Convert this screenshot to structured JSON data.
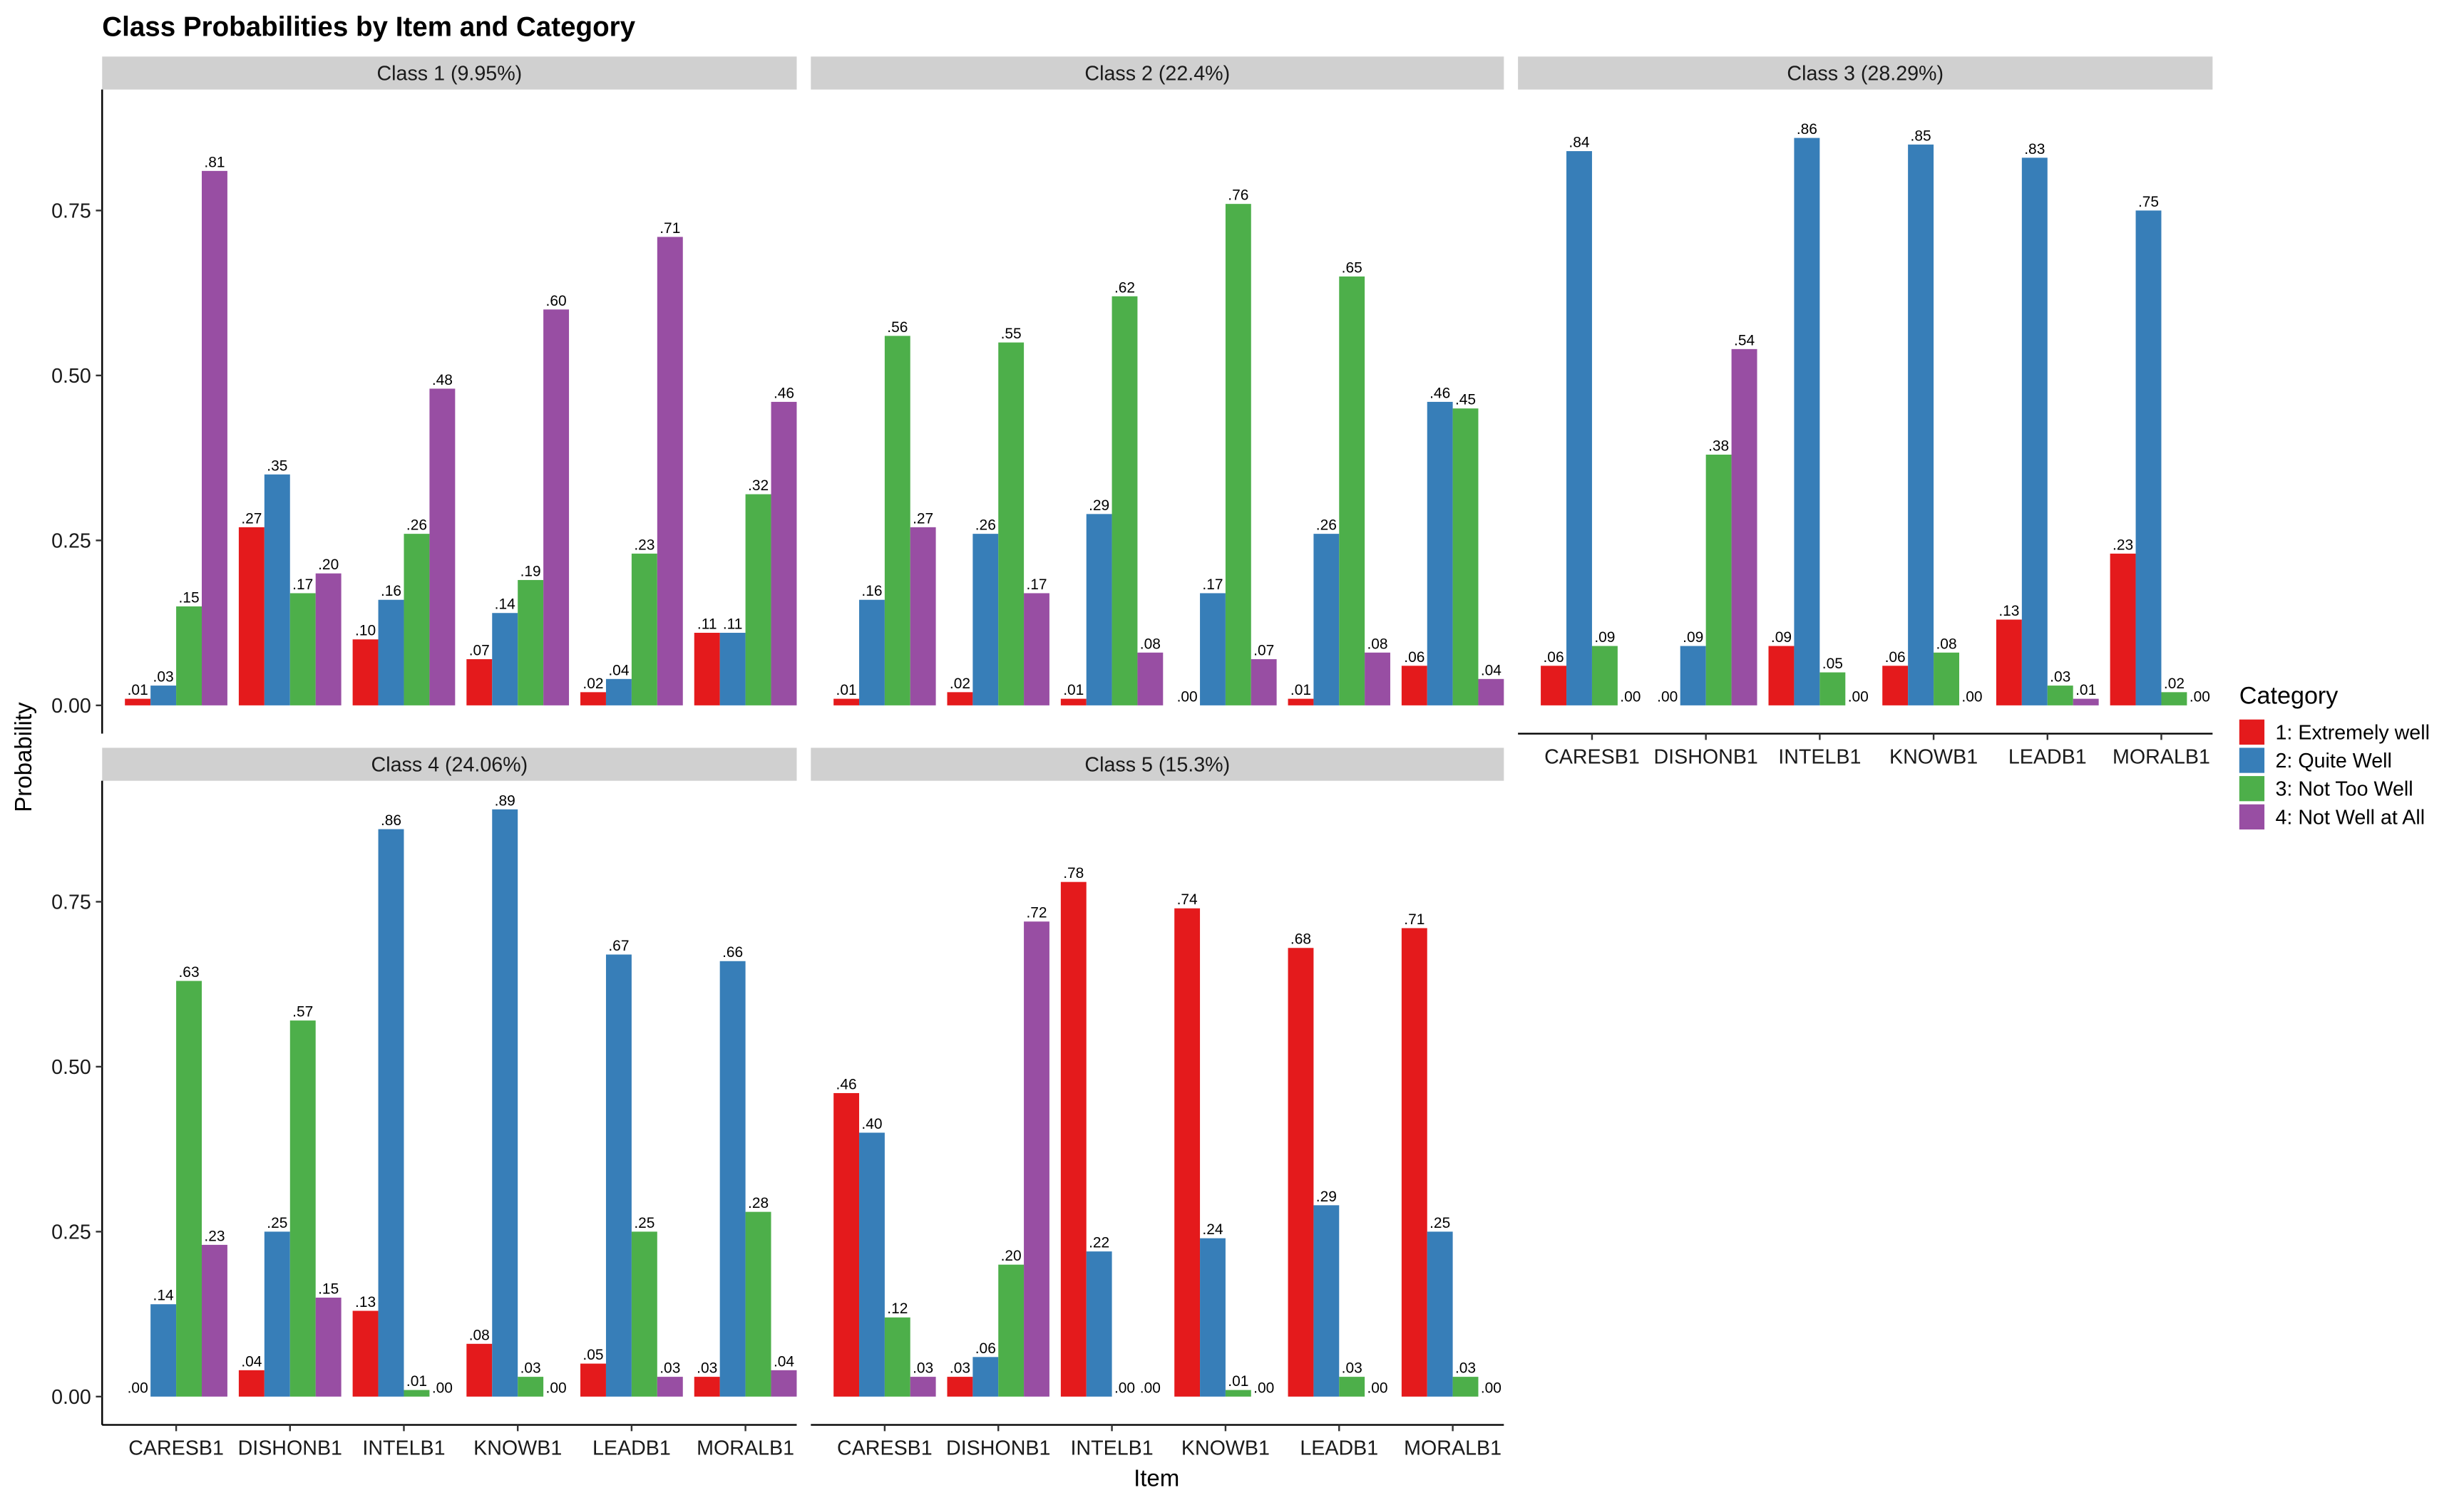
{
  "chart_data": {
    "type": "bar",
    "subtype": "grouped-faceted",
    "title": "Class Probabilities by Item and Category",
    "xlabel": "Item",
    "ylabel": "Probability",
    "ylim": [
      0,
      0.93
    ],
    "yticks": [
      0,
      0.25,
      0.5,
      0.75
    ],
    "ytick_labels": [
      "0.00",
      "0.25",
      "0.50",
      "0.75"
    ],
    "grid": false,
    "categories": [
      "CARESB1",
      "DISHONB1",
      "INTELB1",
      "KNOWB1",
      "LEADB1",
      "MORALB1"
    ],
    "legend": {
      "title": "Category",
      "position": "right",
      "entries": [
        {
          "name": "1: Extremely well",
          "color": "#E41A1C"
        },
        {
          "name": "2: Quite Well",
          "color": "#377EB8"
        },
        {
          "name": "3: Not Too Well",
          "color": "#4DAF4A"
        },
        {
          "name": "4: Not Well at All",
          "color": "#984EA3"
        }
      ]
    },
    "panels": [
      {
        "label": "Class 1 (9.95%)",
        "series": [
          {
            "name": "1: Extremely well",
            "values": [
              0.01,
              0.27,
              0.1,
              0.07,
              0.02,
              0.11
            ]
          },
          {
            "name": "2: Quite Well",
            "values": [
              0.03,
              0.35,
              0.16,
              0.14,
              0.04,
              0.11
            ]
          },
          {
            "name": "3: Not Too Well",
            "values": [
              0.15,
              0.17,
              0.26,
              0.19,
              0.23,
              0.32
            ]
          },
          {
            "name": "4: Not Well at All",
            "values": [
              0.81,
              0.2,
              0.48,
              0.6,
              0.71,
              0.46
            ]
          }
        ]
      },
      {
        "label": "Class 2 (22.4%)",
        "series": [
          {
            "name": "1: Extremely well",
            "values": [
              0.01,
              0.02,
              0.01,
              0.0,
              0.01,
              0.06
            ]
          },
          {
            "name": "2: Quite Well",
            "values": [
              0.16,
              0.26,
              0.29,
              0.17,
              0.26,
              0.46
            ]
          },
          {
            "name": "3: Not Too Well",
            "values": [
              0.56,
              0.55,
              0.62,
              0.76,
              0.65,
              0.45
            ]
          },
          {
            "name": "4: Not Well at All",
            "values": [
              0.27,
              0.17,
              0.08,
              0.07,
              0.08,
              0.04
            ]
          }
        ]
      },
      {
        "label": "Class 3 (28.29%)",
        "series": [
          {
            "name": "1: Extremely well",
            "values": [
              0.06,
              0.0,
              0.09,
              0.06,
              0.13,
              0.23
            ]
          },
          {
            "name": "2: Quite Well",
            "values": [
              0.84,
              0.09,
              0.86,
              0.85,
              0.83,
              0.75
            ]
          },
          {
            "name": "3: Not Too Well",
            "values": [
              0.09,
              0.38,
              0.05,
              0.08,
              0.03,
              0.02
            ]
          },
          {
            "name": "4: Not Well at All",
            "values": [
              0.0,
              0.54,
              0.0,
              0.0,
              0.01,
              0.0
            ]
          }
        ]
      },
      {
        "label": "Class 4 (24.06%)",
        "series": [
          {
            "name": "1: Extremely well",
            "values": [
              0.0,
              0.04,
              0.13,
              0.08,
              0.05,
              0.03
            ]
          },
          {
            "name": "2: Quite Well",
            "values": [
              0.14,
              0.25,
              0.86,
              0.89,
              0.67,
              0.66
            ]
          },
          {
            "name": "3: Not Too Well",
            "values": [
              0.63,
              0.57,
              0.01,
              0.03,
              0.25,
              0.28
            ]
          },
          {
            "name": "4: Not Well at All",
            "values": [
              0.23,
              0.15,
              0.0,
              0.0,
              0.03,
              0.04
            ]
          }
        ]
      },
      {
        "label": "Class 5 (15.3%)",
        "series": [
          {
            "name": "1: Extremely well",
            "values": [
              0.46,
              0.03,
              0.78,
              0.74,
              0.68,
              0.71
            ]
          },
          {
            "name": "2: Quite Well",
            "values": [
              0.4,
              0.06,
              0.22,
              0.24,
              0.29,
              0.25
            ]
          },
          {
            "name": "3: Not Too Well",
            "values": [
              0.12,
              0.2,
              0.0,
              0.01,
              0.03,
              0.03
            ]
          },
          {
            "name": "4: Not Well at All",
            "values": [
              0.03,
              0.72,
              0.0,
              0.0,
              0.0,
              0.0
            ]
          }
        ]
      }
    ]
  }
}
